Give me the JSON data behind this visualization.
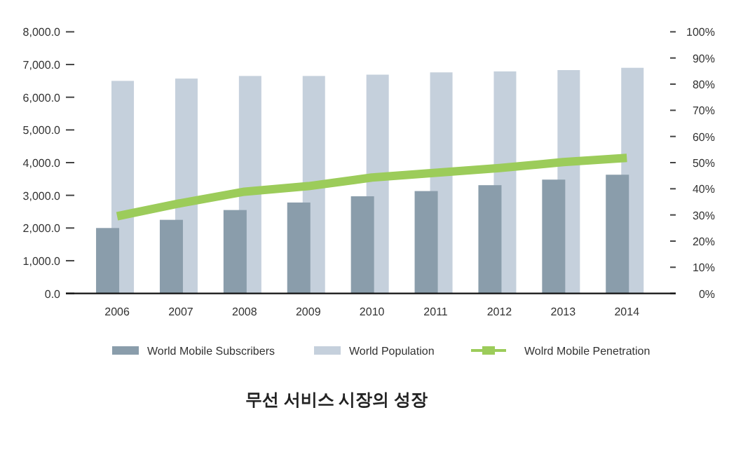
{
  "chart_data": {
    "type": "bar",
    "title": "무선 서비스 시장의 성장",
    "categories": [
      "2006",
      "2007",
      "2008",
      "2009",
      "2010",
      "2011",
      "2012",
      "2013",
      "2014"
    ],
    "series": [
      {
        "name": "World Mobile Subscribers",
        "color": "#8a9dab",
        "values": [
          2000,
          2250,
          2550,
          2780,
          2970,
          3130,
          3310,
          3480,
          3630
        ]
      },
      {
        "name": "World Population",
        "color": "#c5d0dc",
        "values": [
          6500,
          6570,
          6650,
          6650,
          6690,
          6760,
          6790,
          6830,
          6900
        ]
      },
      {
        "name": "Wolrd Mobile Penetration",
        "type": "line",
        "axis": "y2",
        "color": "#9ccc5a",
        "values": [
          29.5,
          34.5,
          38.9,
          41,
          44.3,
          46.1,
          47.9,
          50.2,
          51.8
        ]
      }
    ],
    "ylim": [
      0,
      8000
    ],
    "yticks": [
      {
        "value": 0,
        "label": "0.0"
      },
      {
        "value": 1000,
        "label": "1,000.0"
      },
      {
        "value": 2000,
        "label": "2,000.0"
      },
      {
        "value": 3000,
        "label": "3,000.0"
      },
      {
        "value": 4000,
        "label": "4,000.0"
      },
      {
        "value": 5000,
        "label": "5,000.0"
      },
      {
        "value": 6000,
        "label": "6,000.0"
      },
      {
        "value": 7000,
        "label": "7,000.0"
      },
      {
        "value": 8000,
        "label": "8,000.0"
      }
    ],
    "y2lim": [
      0,
      100
    ],
    "y2ticks": [
      {
        "value": 0,
        "label": "0%"
      },
      {
        "value": 10,
        "label": "10%"
      },
      {
        "value": 20,
        "label": "20%"
      },
      {
        "value": 30,
        "label": "30%"
      },
      {
        "value": 40,
        "label": "40%"
      },
      {
        "value": 50,
        "label": "50%"
      },
      {
        "value": 60,
        "label": "60%"
      },
      {
        "value": 70,
        "label": "70%"
      },
      {
        "value": 80,
        "label": "80%"
      },
      {
        "value": 90,
        "label": "90%"
      },
      {
        "value": 100,
        "label": "100%"
      }
    ],
    "legend": "bottom",
    "grid": false
  }
}
